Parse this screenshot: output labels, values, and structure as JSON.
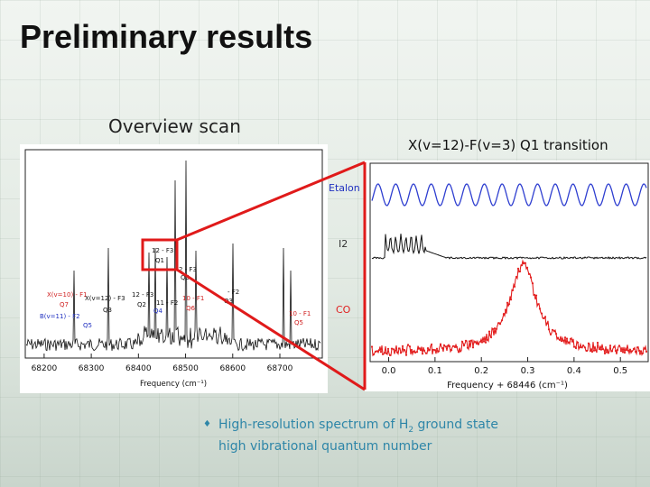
{
  "slide": {
    "title": "Preliminary results",
    "subtitle_left": "Overview scan",
    "subtitle_right": "X(v=12)-F(v=3) Q1 transition",
    "bullet": {
      "text_before": "High-resolution spectrum of  H",
      "subscript": "2",
      "text_after": " ground state high vibrational quantum number"
    }
  },
  "colors": {
    "highlight": "#e01a1a",
    "etalon": "#2f3fd0",
    "co": "#e32020",
    "label_red": "#d02020",
    "label_blue": "#2030c0",
    "bullet": "#2e86a8"
  },
  "chart_data": [
    {
      "type": "line",
      "xlabel": "Frequency (cm⁻¹)",
      "xticks": [
        "68200",
        "68300",
        "68400",
        "68500",
        "68600",
        "68700"
      ],
      "xlim": [
        68160,
        68790
      ],
      "annotations": [
        {
          "text": "12 - F3",
          "color": "black",
          "x": 68412
        },
        {
          "text": "Q1",
          "color": "black",
          "x": 68418
        },
        {
          "text": "2 - F3",
          "color": "black",
          "x": 68465
        },
        {
          "text": "Q5",
          "color": "black",
          "x": 68463
        },
        {
          "text": "X(v=10) - F1",
          "color": "red",
          "x": 68195
        },
        {
          "text": "Q7",
          "color": "red",
          "x": 68208
        },
        {
          "text": "X(v=12) - F3",
          "color": "black",
          "x": 68278
        },
        {
          "text": "Q3",
          "color": "black",
          "x": 68310
        },
        {
          "text": "12 - F3",
          "color": "black",
          "x": 68335
        },
        {
          "text": "Q2",
          "color": "black",
          "x": 68345
        },
        {
          "text": "11 - F2",
          "color": "black",
          "x": 68385
        },
        {
          "text": "Q4",
          "color": "blue",
          "x": 68372
        },
        {
          "text": "10 - F1",
          "color": "red",
          "x": 68472
        },
        {
          "text": "Q6",
          "color": "red",
          "x": 68480
        },
        {
          "text": "- F2",
          "color": "black",
          "x": 68560
        },
        {
          "text": "Q3",
          "color": "black",
          "x": 68560
        },
        {
          "text": "10 - F1",
          "color": "red",
          "x": 68690
        },
        {
          "text": "Q5",
          "color": "red",
          "x": 68700
        },
        {
          "text": "B(v=11) - F2",
          "color": "blue",
          "x": 68196
        },
        {
          "text": "Q5",
          "color": "blue",
          "x": 68215
        }
      ]
    },
    {
      "type": "line",
      "xlabel": "Frequency + 68446 (cm⁻¹)",
      "xticks": [
        "0.0",
        "0.1",
        "0.2",
        "0.3",
        "0.4",
        "0.5"
      ],
      "xlim": [
        -0.04,
        0.56
      ],
      "series": [
        {
          "name": "Etalon",
          "shape": "sinusoid",
          "center": 0.055
        },
        {
          "name": "I2",
          "shape": "absorption lines",
          "center": 0.06
        },
        {
          "name": "CO",
          "shape": "lorentzian",
          "center": 0.29
        }
      ]
    }
  ]
}
